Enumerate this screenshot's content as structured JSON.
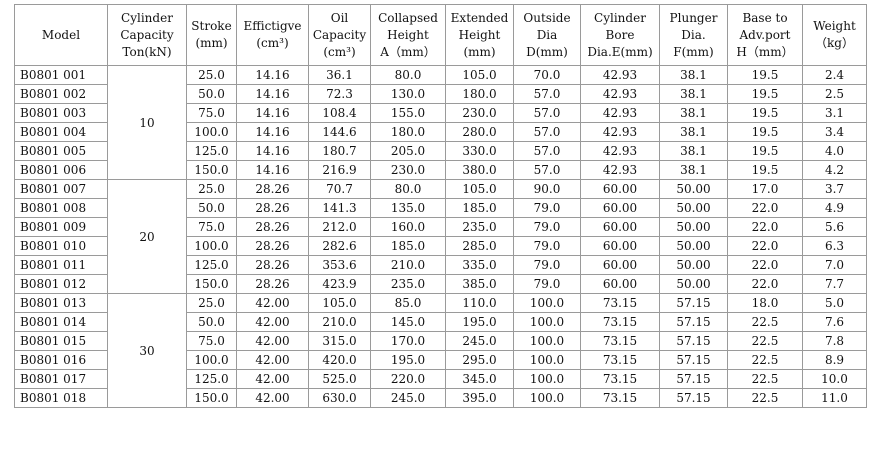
{
  "headers": [
    [
      "Model"
    ],
    [
      "Cylinder",
      "Capacity",
      "Ton(kN)"
    ],
    [
      "Stroke",
      "(mm)"
    ],
    [
      "Effictigve",
      "(cm³)"
    ],
    [
      "Oil",
      "Capacity",
      "(cm³)"
    ],
    [
      "Collapsed",
      "Height",
      "A（mm）"
    ],
    [
      "Extended",
      "Height",
      "(mm)"
    ],
    [
      "Outside",
      "Dia",
      "D(mm)"
    ],
    [
      "Cylinder",
      "Bore",
      "Dia.E(mm)"
    ],
    [
      "Plunger",
      "Dia.",
      "F(mm)"
    ],
    [
      "Base to",
      "Adv.port",
      "H（mm）"
    ],
    [
      "Weight",
      "（kg）"
    ]
  ],
  "groups": [
    {
      "capacity": "10",
      "rows": [
        [
          "B0801 001",
          "25.0",
          "14.16",
          "36.1",
          "80.0",
          "105.0",
          "70.0",
          "42.93",
          "38.1",
          "19.5",
          "2.4"
        ],
        [
          "B0801 002",
          "50.0",
          "14.16",
          "72.3",
          "130.0",
          "180.0",
          "57.0",
          "42.93",
          "38.1",
          "19.5",
          "2.5"
        ],
        [
          "B0801 003",
          "75.0",
          "14.16",
          "108.4",
          "155.0",
          "230.0",
          "57.0",
          "42.93",
          "38.1",
          "19.5",
          "3.1"
        ],
        [
          "B0801 004",
          "100.0",
          "14.16",
          "144.6",
          "180.0",
          "280.0",
          "57.0",
          "42.93",
          "38.1",
          "19.5",
          "3.4"
        ],
        [
          "B0801 005",
          "125.0",
          "14.16",
          "180.7",
          "205.0",
          "330.0",
          "57.0",
          "42.93",
          "38.1",
          "19.5",
          "4.0"
        ],
        [
          "B0801 006",
          "150.0",
          "14.16",
          "216.9",
          "230.0",
          "380.0",
          "57.0",
          "42.93",
          "38.1",
          "19.5",
          "4.2"
        ]
      ]
    },
    {
      "capacity": "20",
      "rows": [
        [
          "B0801 007",
          "25.0",
          "28.26",
          "70.7",
          "80.0",
          "105.0",
          "90.0",
          "60.00",
          "50.00",
          "17.0",
          "3.7"
        ],
        [
          "B0801 008",
          "50.0",
          "28.26",
          "141.3",
          "135.0",
          "185.0",
          "79.0",
          "60.00",
          "50.00",
          "22.0",
          "4.9"
        ],
        [
          "B0801 009",
          "75.0",
          "28.26",
          "212.0",
          "160.0",
          "235.0",
          "79.0",
          "60.00",
          "50.00",
          "22.0",
          "5.6"
        ],
        [
          "B0801 010",
          "100.0",
          "28.26",
          "282.6",
          "185.0",
          "285.0",
          "79.0",
          "60.00",
          "50.00",
          "22.0",
          "6.3"
        ],
        [
          "B0801 011",
          "125.0",
          "28.26",
          "353.6",
          "210.0",
          "335.0",
          "79.0",
          "60.00",
          "50.00",
          "22.0",
          "7.0"
        ],
        [
          "B0801 012",
          "150.0",
          "28.26",
          "423.9",
          "235.0",
          "385.0",
          "79.0",
          "60.00",
          "50.00",
          "22.0",
          "7.7"
        ]
      ]
    },
    {
      "capacity": "30",
      "rows": [
        [
          "B0801 013",
          "25.0",
          "42.00",
          "105.0",
          "85.0",
          "110.0",
          "100.0",
          "73.15",
          "57.15",
          "18.0",
          "5.0"
        ],
        [
          "B0801 014",
          "50.0",
          "42.00",
          "210.0",
          "145.0",
          "195.0",
          "100.0",
          "73.15",
          "57.15",
          "22.5",
          "7.6"
        ],
        [
          "B0801 015",
          "75.0",
          "42.00",
          "315.0",
          "170.0",
          "245.0",
          "100.0",
          "73.15",
          "57.15",
          "22.5",
          "7.8"
        ],
        [
          "B0801 016",
          "100.0",
          "42.00",
          "420.0",
          "195.0",
          "295.0",
          "100.0",
          "73.15",
          "57.15",
          "22.5",
          "8.9"
        ],
        [
          "B0801 017",
          "125.0",
          "42.00",
          "525.0",
          "220.0",
          "345.0",
          "100.0",
          "73.15",
          "57.15",
          "22.5",
          "10.0"
        ],
        [
          "B0801 018",
          "150.0",
          "42.00",
          "630.0",
          "245.0",
          "395.0",
          "100.0",
          "73.15",
          "57.15",
          "22.5",
          "11.0"
        ]
      ]
    }
  ]
}
